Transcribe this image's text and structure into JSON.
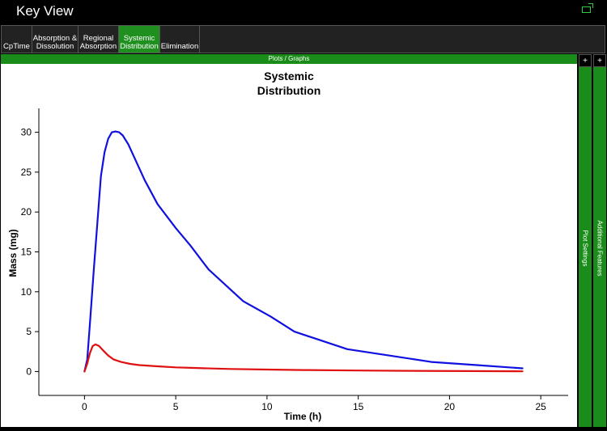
{
  "app": {
    "title": "Key View",
    "window_icon": "restore-window-icon"
  },
  "tabs": [
    {
      "label": "CpTime",
      "active": false
    },
    {
      "label": "Absorption &\nDissolution",
      "active": false
    },
    {
      "label": "Regional\nAbsorption",
      "active": false
    },
    {
      "label": "Systemic\nDistribution",
      "active": true
    },
    {
      "label": "Elimination",
      "active": false
    }
  ],
  "plots_header": "Plots / Graphs",
  "side_panels": {
    "plot_settings": {
      "label": "Plot Settings",
      "toggle": "+"
    },
    "additional_features": {
      "label": "Additional Features",
      "toggle": "+"
    }
  },
  "chart_data": {
    "type": "line",
    "title_lines": [
      "Systemic",
      "Distribution"
    ],
    "xlabel": "Time (h)",
    "ylabel": "Mass (mg)",
    "xlim": [
      -2.5,
      26.5
    ],
    "ylim": [
      -3,
      33
    ],
    "xticks": [
      0,
      5,
      10,
      15,
      20,
      25
    ],
    "yticks": [
      0,
      5,
      10,
      15,
      20,
      25,
      30
    ],
    "grid": false,
    "series": [
      {
        "color": "#1010e0",
        "x": [
          0,
          0.15,
          0.3,
          0.5,
          0.7,
          0.9,
          1.1,
          1.3,
          1.5,
          1.7,
          1.9,
          2.1,
          2.4,
          2.8,
          3.3,
          4,
          5,
          5.8,
          6.8,
          8.7,
          10.2,
          11.5,
          14.4,
          17,
          19,
          21.5,
          24
        ],
        "y": [
          0,
          1.5,
          6,
          12.5,
          18.5,
          24.5,
          27.5,
          29.2,
          30,
          30.1,
          30,
          29.6,
          28.5,
          26.5,
          24,
          21,
          18,
          15.8,
          12.8,
          8.8,
          6.9,
          5.0,
          2.8,
          1.9,
          1.2,
          0.8,
          0.4
        ]
      },
      {
        "color": "#e01010",
        "x": [
          0,
          0.15,
          0.3,
          0.45,
          0.6,
          0.8,
          1.0,
          1.3,
          1.6,
          2.0,
          2.5,
          3,
          4,
          5,
          6,
          7,
          8,
          10,
          12,
          15,
          18,
          21,
          24
        ],
        "y": [
          0,
          1.0,
          2.3,
          3.2,
          3.4,
          3.2,
          2.7,
          2.0,
          1.5,
          1.2,
          0.95,
          0.8,
          0.65,
          0.52,
          0.45,
          0.38,
          0.32,
          0.25,
          0.18,
          0.12,
          0.08,
          0.05,
          0.02
        ]
      }
    ]
  }
}
